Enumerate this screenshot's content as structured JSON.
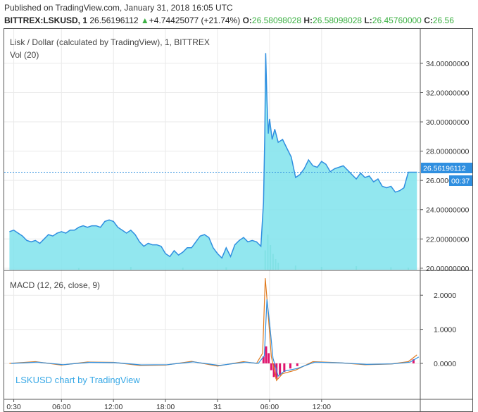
{
  "header": {
    "published": "Published on TradingView.com, January 31, 2018 16:05 UTC",
    "symbol": "BITTREX:LSKUSD, 1",
    "last": "26.56196112",
    "change": "+4.74425077 (+21.74%)",
    "o_label": "O:",
    "o_value": "26.58098028",
    "h_label": "H:",
    "h_value": "26.58098028",
    "l_label": "L:",
    "l_value": "26.45760000",
    "c_label": "C:",
    "c_value": "26.56"
  },
  "price_pane": {
    "title": "Lisk / Dollar (calculated by TradingView), 1, BITTREX",
    "vol_label": "Vol (20)",
    "price_tag": "26.56196112",
    "countdown_tag": "00:37",
    "y_ticks": [
      "34.00000000",
      "32.00000000",
      "30.00000000",
      "28.00000000",
      "26.00000000",
      "24.00000000",
      "22.00000000",
      "20.00000000"
    ]
  },
  "macd_pane": {
    "title": "MACD (12, 26, close, 9)",
    "y_ticks": [
      "2.0000",
      "1.0000",
      "0.0000"
    ]
  },
  "watermark": "LSKUSD chart by TradingView",
  "x_ticks": [
    "0:30",
    "06:00",
    "12:00",
    "18:00",
    "31",
    "06:00",
    "12:00"
  ],
  "colors": {
    "line": "#2f8fe0",
    "area": "#7fe3ec",
    "volume": "#5cc69a",
    "macd_hist_neg": "#e0156e",
    "macd_line": "#e07a1d",
    "signal_line": "#2f8fe0",
    "price_tag_bg": "#2f8fe0",
    "up": "#3cb043"
  },
  "chart_data": {
    "type": "area",
    "title": "Lisk / Dollar (calculated by TradingView), 1, BITTREX",
    "x_ticks": [
      "0:30",
      "06:00",
      "12:00",
      "18:00",
      "31",
      "06:00",
      "12:00"
    ],
    "ylim": [
      19.8,
      35.2
    ],
    "series": [
      {
        "name": "LSKUSD",
        "x_hours": [
          0.0,
          0.5,
          1.0,
          1.5,
          2.0,
          2.5,
          3.0,
          3.5,
          4.0,
          4.5,
          5.0,
          5.5,
          6.0,
          6.5,
          7.0,
          7.5,
          8.0,
          8.5,
          9.0,
          9.5,
          10.0,
          10.5,
          11.0,
          11.5,
          12.0,
          12.5,
          13.0,
          13.5,
          14.0,
          14.5,
          15.0,
          15.5,
          16.0,
          16.5,
          17.0,
          17.5,
          18.0,
          18.5,
          19.0,
          19.5,
          20.0,
          20.5,
          21.0,
          21.5,
          22.0,
          22.5,
          23.0,
          23.5,
          24.0,
          24.5,
          25.0,
          25.5,
          26.0,
          26.5,
          27.0,
          27.5,
          28.0,
          28.5,
          29.0,
          29.3,
          29.45,
          29.55,
          29.7,
          29.85,
          30.0,
          30.3,
          30.6,
          31.0,
          31.5,
          32.0,
          32.5,
          33.0,
          33.5,
          34.0,
          34.5,
          35.0,
          35.5,
          36.0,
          36.5,
          37.0,
          37.5,
          38.0,
          38.5,
          39.0,
          39.5,
          40.0,
          40.5,
          41.0,
          41.5,
          42.0,
          42.5,
          43.0,
          43.5,
          44.0,
          44.5,
          45.0,
          45.5,
          46.0,
          46.5,
          47.0
        ],
        "values": [
          22.5,
          22.6,
          22.4,
          22.2,
          21.9,
          21.8,
          21.9,
          21.7,
          22.0,
          22.3,
          22.2,
          22.4,
          22.5,
          22.4,
          22.6,
          22.6,
          22.8,
          22.9,
          22.8,
          22.9,
          22.9,
          22.8,
          23.2,
          23.3,
          23.2,
          22.8,
          22.6,
          22.4,
          22.6,
          22.3,
          21.8,
          21.5,
          21.7,
          21.6,
          21.6,
          21.5,
          21.0,
          20.8,
          21.2,
          20.9,
          21.1,
          21.4,
          21.4,
          21.8,
          22.2,
          22.3,
          22.1,
          21.4,
          21.0,
          20.7,
          21.4,
          20.8,
          21.6,
          21.9,
          22.1,
          21.8,
          21.9,
          21.8,
          21.5,
          24.5,
          29.0,
          34.7,
          31.5,
          29.2,
          30.2,
          28.8,
          29.5,
          28.6,
          28.8,
          28.2,
          27.6,
          26.2,
          26.4,
          26.8,
          27.4,
          27.0,
          26.9,
          27.3,
          27.1,
          26.6,
          26.8,
          26.9,
          27.0,
          26.7,
          26.4,
          26.1,
          26.5,
          26.2,
          26.3,
          25.9,
          26.1,
          25.6,
          25.5,
          25.6,
          25.2,
          25.3,
          25.5,
          26.56,
          26.56,
          26.56
        ]
      },
      {
        "name": "Vol (20)",
        "x_hours": [
          29.5,
          29.8,
          30.1,
          30.4,
          30.7,
          31.0,
          33.0,
          36.0,
          40.0,
          44.0,
          46.0,
          8.0,
          14.0,
          20.0,
          25.0
        ],
        "values": [
          0.55,
          1.0,
          0.7,
          0.45,
          0.3,
          0.2,
          0.12,
          0.08,
          0.1,
          0.07,
          0.06,
          0.05,
          0.08,
          0.06,
          0.07
        ]
      }
    ],
    "macd": {
      "title": "MACD (12, 26, close, 9)",
      "ylim": [
        -0.6,
        2.5
      ],
      "x_hours": [
        0,
        3,
        6,
        9,
        12,
        15,
        18,
        21,
        24,
        27,
        28.5,
        29.2,
        29.5,
        29.8,
        30.2,
        30.8,
        31.5,
        33,
        35,
        38,
        41,
        44,
        46,
        47
      ],
      "macd_values": [
        0.0,
        0.05,
        -0.05,
        0.04,
        0.03,
        -0.06,
        -0.05,
        0.06,
        -0.08,
        0.05,
        0.0,
        0.3,
        2.5,
        1.6,
        0.2,
        -0.5,
        -0.3,
        -0.2,
        0.05,
        0.02,
        -0.04,
        -0.02,
        0.05,
        0.25
      ],
      "hist_x_hours": [
        29.3,
        29.6,
        29.9,
        30.2,
        30.5,
        30.8,
        31.2,
        31.7,
        32.4,
        33.2,
        46.6
      ],
      "hist_values": [
        0.2,
        0.5,
        0.3,
        -0.2,
        -0.4,
        -0.45,
        -0.35,
        -0.25,
        -0.15,
        -0.08,
        0.12
      ]
    }
  }
}
